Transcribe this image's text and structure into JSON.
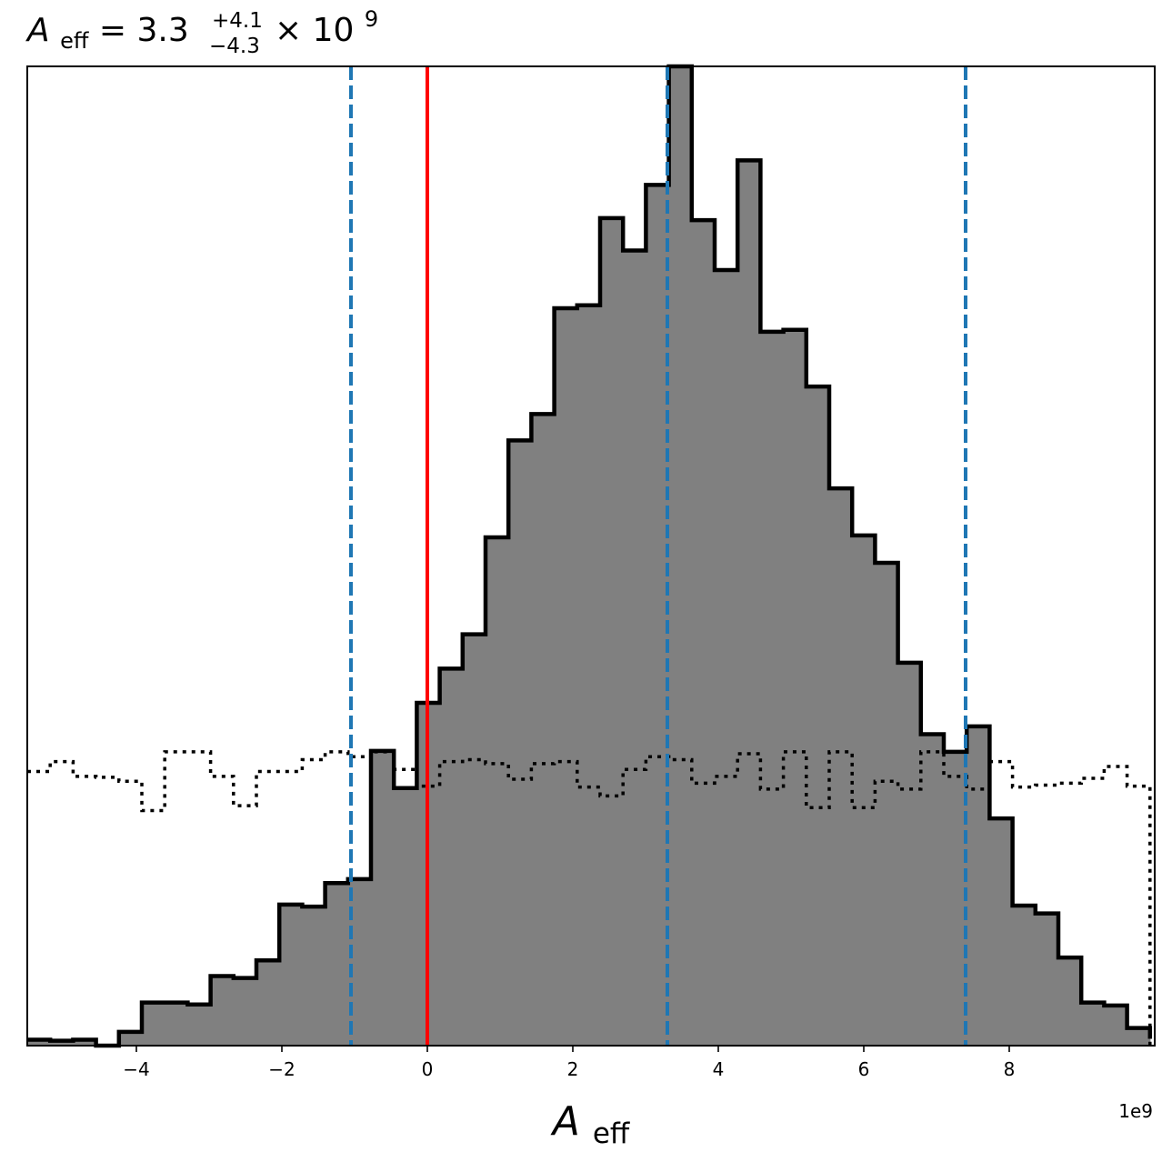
{
  "chart_data": {
    "type": "bar",
    "title": {
      "symbol": "A",
      "subscript": "eff",
      "equals": " = ",
      "median": "3.3",
      "err_plus": "+4.1",
      "err_minus": "−4.3",
      "times": " × 10",
      "exponent": "9"
    },
    "xlabel": {
      "symbol": "A",
      "subscript": "eff"
    },
    "ylabel": "",
    "offset_text": "1e9",
    "xlim": [
      -5.5,
      10.0
    ],
    "ylim": [
      0,
      1.0
    ],
    "x_ticks": [
      -4,
      -2,
      0,
      2,
      4,
      6,
      8
    ],
    "x_tick_labels": [
      "−4",
      "−2",
      "0",
      "2",
      "4",
      "6",
      "8"
    ],
    "y_ticks": [],
    "grid": false,
    "bin_edges": [
      -5.5,
      -5.185,
      -4.87,
      -4.555,
      -4.24,
      -3.925,
      -3.61,
      -3.295,
      -2.98,
      -2.665,
      -2.35,
      -2.035,
      -1.72,
      -1.405,
      -1.09,
      -0.775,
      -0.46,
      -0.145,
      0.17,
      0.485,
      0.8,
      1.115,
      1.43,
      1.745,
      2.06,
      2.375,
      2.69,
      3.005,
      3.32,
      3.635,
      3.95,
      4.265,
      4.58,
      4.895,
      5.21,
      5.525,
      5.84,
      6.155,
      6.47,
      6.785,
      7.1,
      7.415,
      7.73,
      8.045,
      8.36,
      8.675,
      8.99,
      9.305,
      9.62,
      9.935
    ],
    "posterior": {
      "name": "posterior",
      "fill": "#808080",
      "edge": "#000000",
      "values": [
        0.006,
        0.005,
        0.006,
        0.0,
        0.014,
        0.044,
        0.044,
        0.042,
        0.071,
        0.069,
        0.087,
        0.144,
        0.142,
        0.166,
        0.17,
        0.301,
        0.263,
        0.35,
        0.385,
        0.42,
        0.519,
        0.618,
        0.645,
        0.753,
        0.756,
        0.845,
        0.812,
        0.879,
        1.0,
        0.843,
        0.792,
        0.904,
        0.729,
        0.731,
        0.673,
        0.569,
        0.521,
        0.493,
        0.391,
        0.318,
        0.3,
        0.326,
        0.232,
        0.143,
        0.135,
        0.09,
        0.044,
        0.041,
        0.018,
        0.007
      ]
    },
    "prior": {
      "name": "prior",
      "style": "dotted",
      "color": "#000000",
      "values": [
        0.28,
        0.29,
        0.275,
        0.274,
        0.27,
        0.24,
        0.3,
        0.3,
        0.275,
        0.245,
        0.28,
        0.28,
        0.292,
        0.3,
        0.295,
        0.3,
        0.282,
        0.265,
        0.29,
        0.292,
        0.288,
        0.272,
        0.288,
        0.29,
        0.264,
        0.255,
        0.282,
        0.295,
        0.292,
        0.268,
        0.275,
        0.298,
        0.262,
        0.3,
        0.243,
        0.3,
        0.243,
        0.27,
        0.262,
        0.3,
        0.275,
        0.262,
        0.29,
        0.264,
        0.266,
        0.268,
        0.273,
        0.285,
        0.265,
        0.0
      ]
    },
    "vlines": [
      {
        "name": "lower-bound",
        "x": -1.05,
        "color": "#1f77b4",
        "style": "dashed"
      },
      {
        "name": "median",
        "x": 3.3,
        "color": "#1f77b4",
        "style": "dashed"
      },
      {
        "name": "upper-bound",
        "x": 7.4,
        "color": "#1f77b4",
        "style": "dashed"
      },
      {
        "name": "zero-reference",
        "x": 0.0,
        "color": "#ff0000",
        "style": "solid"
      }
    ]
  }
}
